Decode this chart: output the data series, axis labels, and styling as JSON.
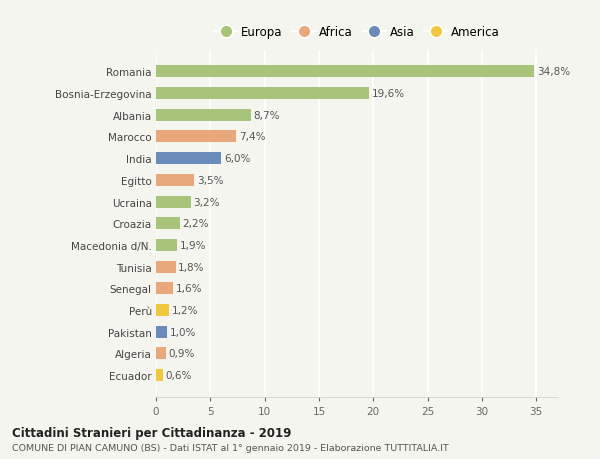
{
  "countries": [
    "Romania",
    "Bosnia-Erzegovina",
    "Albania",
    "Marocco",
    "India",
    "Egitto",
    "Ucraina",
    "Croazia",
    "Macedonia d/N.",
    "Tunisia",
    "Senegal",
    "Perù",
    "Pakistan",
    "Algeria",
    "Ecuador"
  ],
  "values": [
    34.8,
    19.6,
    8.7,
    7.4,
    6.0,
    3.5,
    3.2,
    2.2,
    1.9,
    1.8,
    1.6,
    1.2,
    1.0,
    0.9,
    0.6
  ],
  "labels": [
    "34,8%",
    "19,6%",
    "8,7%",
    "7,4%",
    "6,0%",
    "3,5%",
    "3,2%",
    "2,2%",
    "1,9%",
    "1,8%",
    "1,6%",
    "1,2%",
    "1,0%",
    "0,9%",
    "0,6%"
  ],
  "continents": [
    "Europa",
    "Europa",
    "Europa",
    "Africa",
    "Asia",
    "Africa",
    "Europa",
    "Europa",
    "Europa",
    "Africa",
    "Africa",
    "America",
    "Asia",
    "Africa",
    "America"
  ],
  "colors": {
    "Europa": "#a8c47a",
    "Africa": "#e8a87c",
    "Asia": "#6b8cba",
    "America": "#f0c840"
  },
  "legend_order": [
    "Europa",
    "Africa",
    "Asia",
    "America"
  ],
  "title_bold": "Cittadini Stranieri per Cittadinanza - 2019",
  "subtitle": "COMUNE DI PIAN CAMUNO (BS) - Dati ISTAT al 1° gennaio 2019 - Elaborazione TUTTITALIA.IT",
  "xlim": [
    0,
    37
  ],
  "xticks": [
    0,
    5,
    10,
    15,
    20,
    25,
    30,
    35
  ],
  "background_color": "#f5f5f0",
  "grid_color": "#ffffff",
  "bar_height": 0.55,
  "label_fontsize": 7.5,
  "ytick_fontsize": 7.5,
  "xtick_fontsize": 7.5
}
